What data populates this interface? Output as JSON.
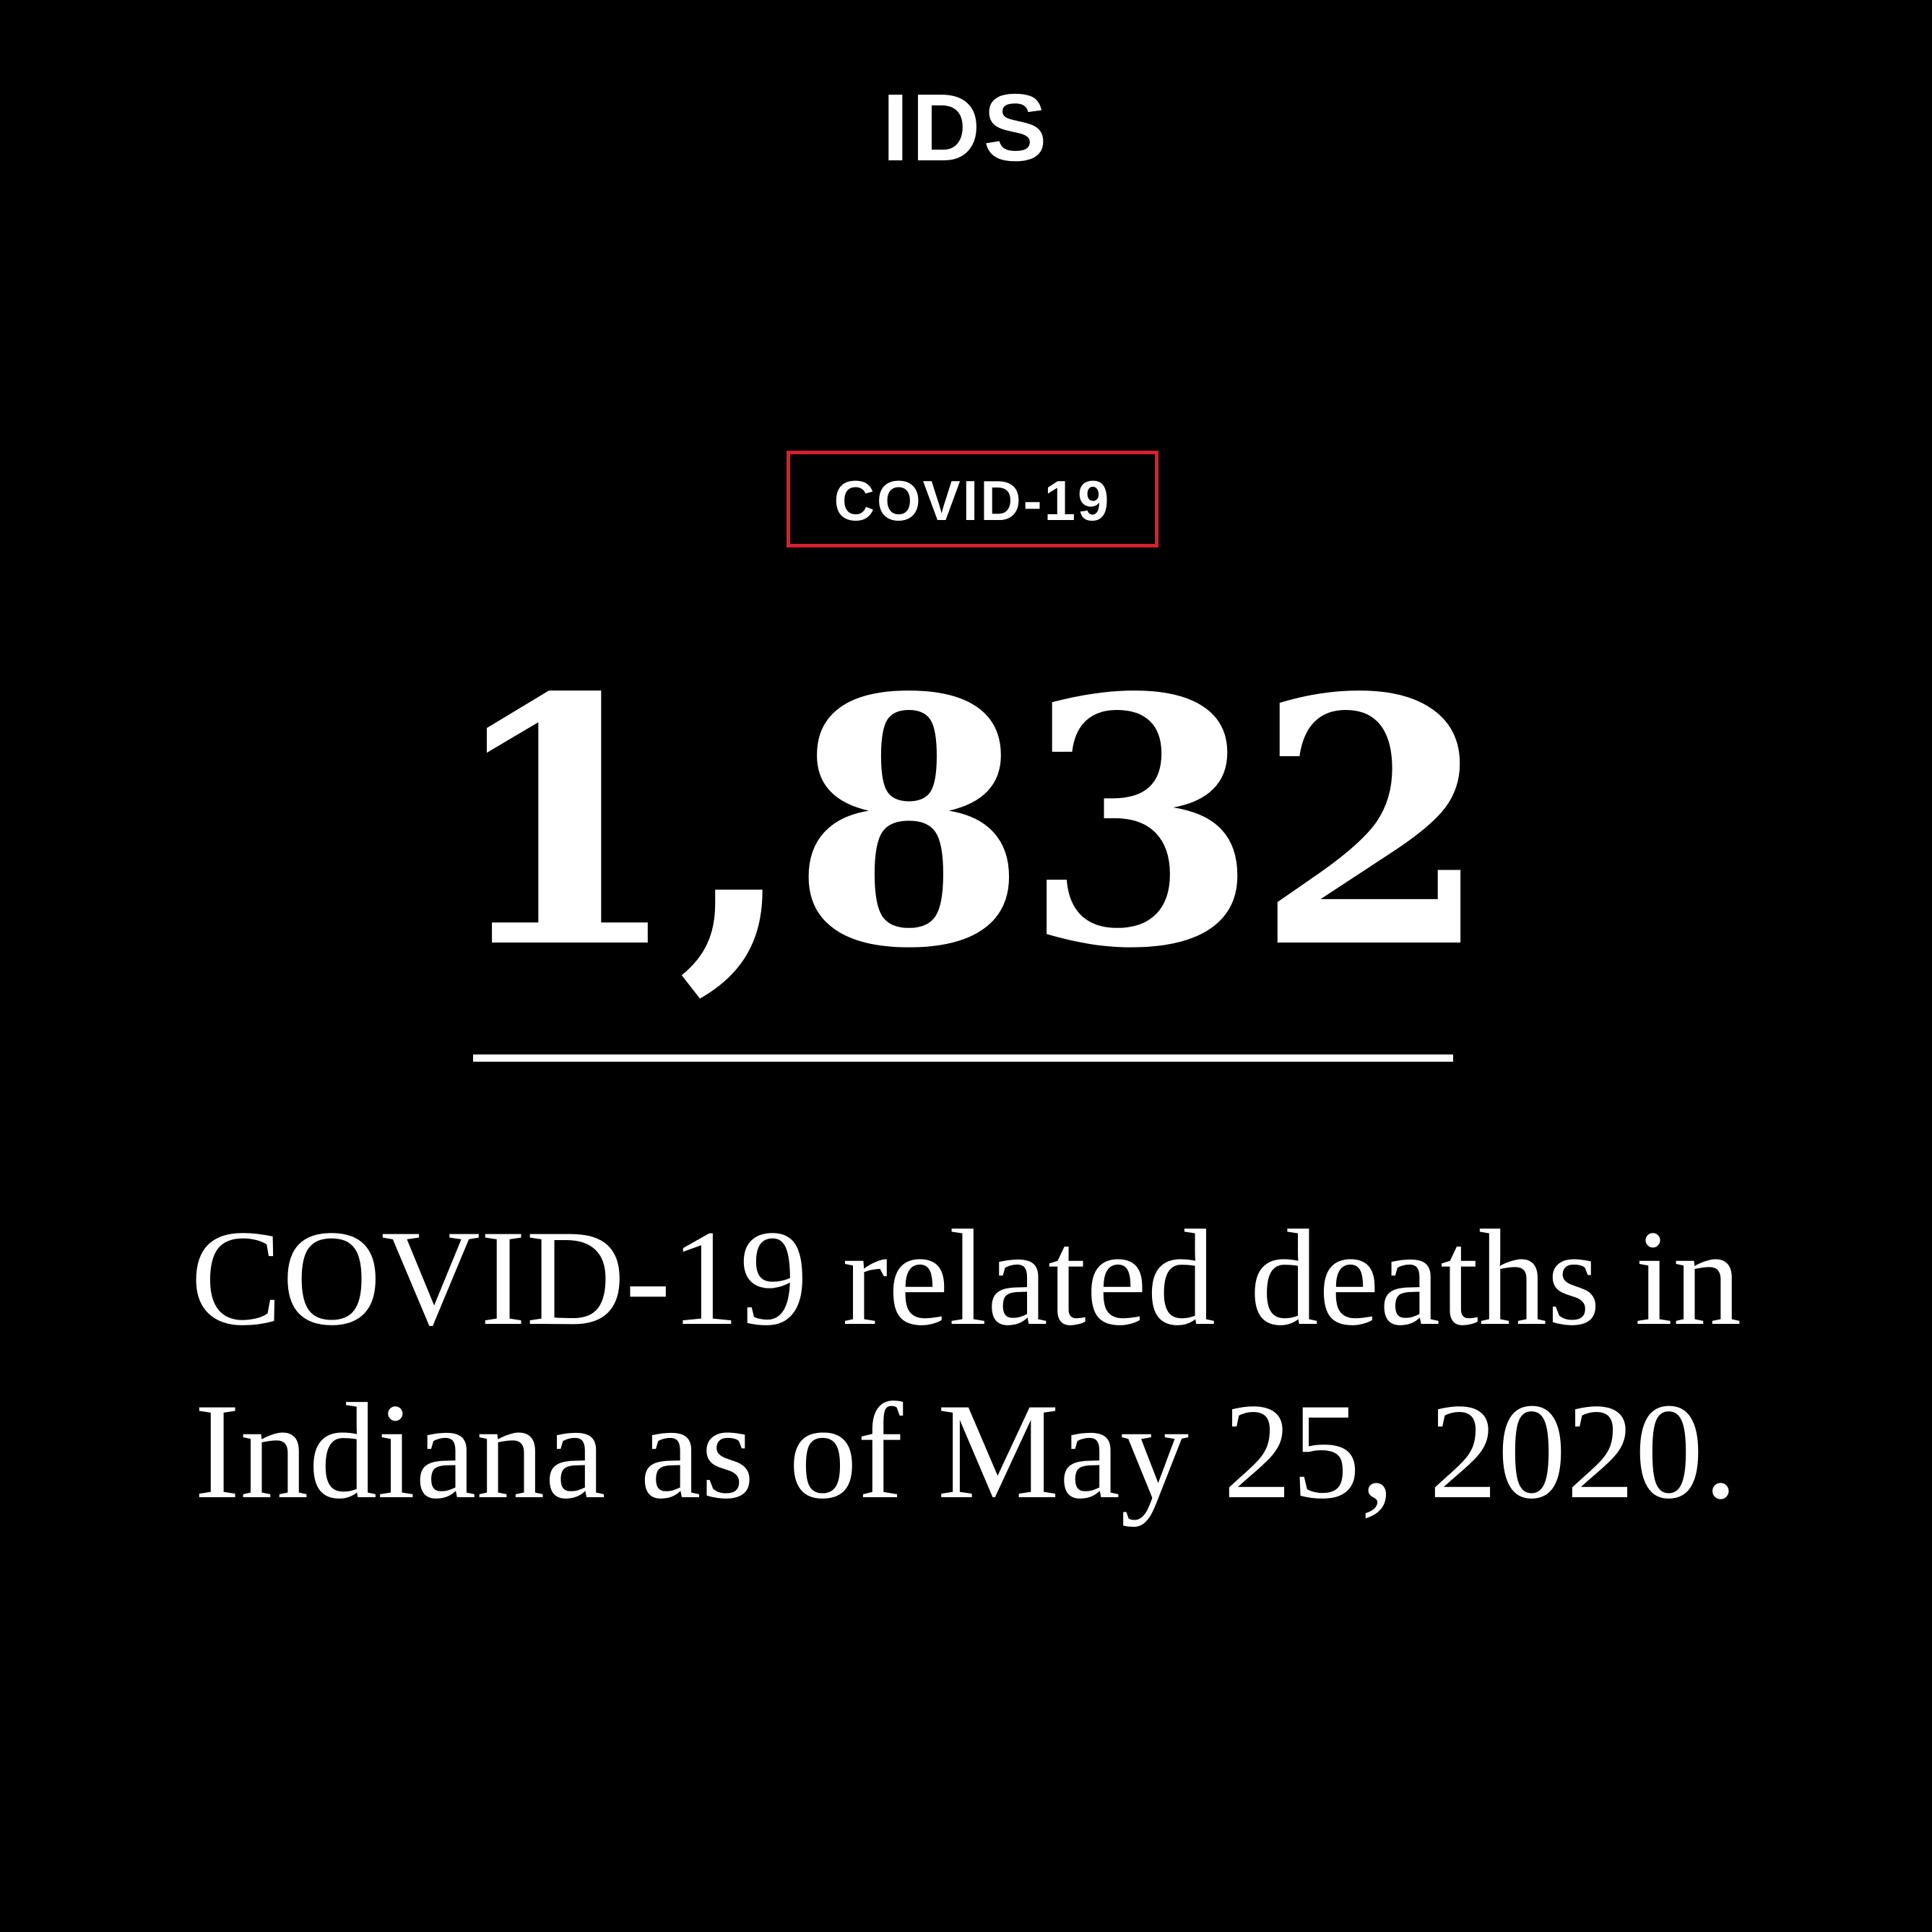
{
  "logo": {
    "text": "IDS"
  },
  "tag": {
    "label": "COVID-19",
    "border_color": "#d6202f"
  },
  "headline": {
    "number": "1,832"
  },
  "caption": {
    "line1": "COVID-19 related deaths in",
    "line2": "Indiana as of May 25, 2020."
  },
  "colors": {
    "background": "#000000",
    "text": "#ffffff"
  }
}
